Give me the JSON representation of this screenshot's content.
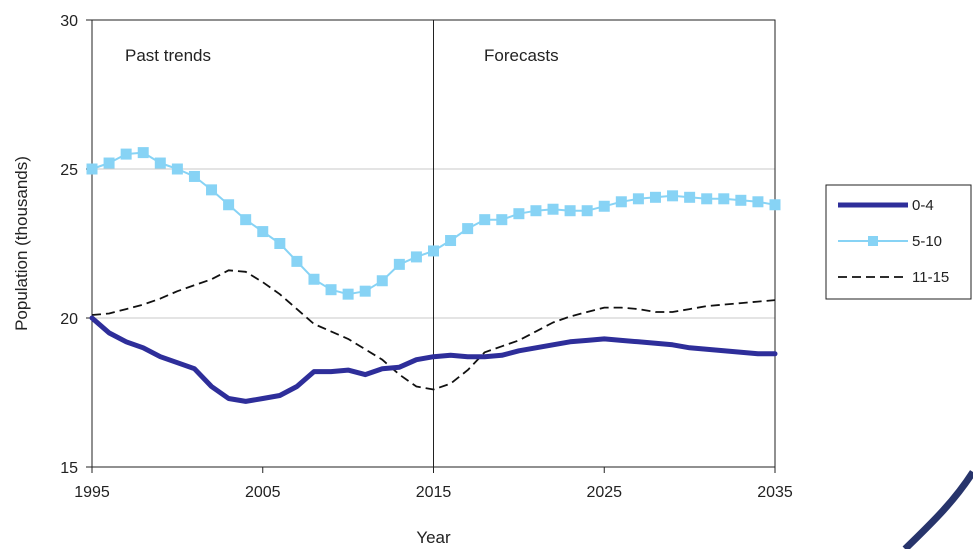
{
  "chart_data": {
    "type": "line",
    "xlabel": "Year",
    "ylabel": "Population (thousands)",
    "xlim": [
      1995,
      2035
    ],
    "ylim": [
      15,
      30
    ],
    "x_ticks": [
      1995,
      2005,
      2015,
      2025,
      2035
    ],
    "y_ticks": [
      15,
      20,
      25,
      30
    ],
    "grid": "horizontal",
    "legend_position": "right",
    "divider_x": 2015,
    "annotations": {
      "left": "Past trends",
      "right": "Forecasts"
    },
    "x": [
      1995,
      1996,
      1997,
      1998,
      1999,
      2000,
      2001,
      2002,
      2003,
      2004,
      2005,
      2006,
      2007,
      2008,
      2009,
      2010,
      2011,
      2012,
      2013,
      2014,
      2015,
      2016,
      2017,
      2018,
      2019,
      2020,
      2021,
      2022,
      2023,
      2024,
      2025,
      2026,
      2027,
      2028,
      2029,
      2030,
      2031,
      2032,
      2033,
      2034,
      2035
    ],
    "series": [
      {
        "name": "0-4",
        "color": "#2e2e9a",
        "style": "thick",
        "values": [
          20.0,
          19.5,
          19.2,
          19.0,
          18.7,
          18.5,
          18.3,
          17.7,
          17.3,
          17.2,
          17.3,
          17.4,
          17.7,
          18.2,
          18.2,
          18.25,
          18.1,
          18.3,
          18.35,
          18.6,
          18.7,
          18.75,
          18.7,
          18.7,
          18.75,
          18.9,
          19.0,
          19.1,
          19.2,
          19.25,
          19.3,
          19.25,
          19.2,
          19.15,
          19.1,
          19.0,
          18.95,
          18.9,
          18.85,
          18.8,
          18.8
        ]
      },
      {
        "name": "5-10",
        "color": "#87d3f5",
        "style": "marker",
        "values": [
          25.0,
          25.2,
          25.5,
          25.55,
          25.2,
          25.0,
          24.75,
          24.3,
          23.8,
          23.3,
          22.9,
          22.5,
          21.9,
          21.3,
          20.95,
          20.8,
          20.9,
          21.25,
          21.8,
          22.05,
          22.25,
          22.6,
          23.0,
          23.3,
          23.3,
          23.5,
          23.6,
          23.65,
          23.6,
          23.6,
          23.75,
          23.9,
          24.0,
          24.05,
          24.1,
          24.05,
          24.0,
          24.0,
          23.95,
          23.9,
          23.8
        ]
      },
      {
        "name": "11-15",
        "color": "#111111",
        "style": "dashed",
        "values": [
          20.1,
          20.15,
          20.3,
          20.45,
          20.65,
          20.9,
          21.1,
          21.3,
          21.6,
          21.55,
          21.2,
          20.8,
          20.3,
          19.8,
          19.55,
          19.3,
          18.95,
          18.6,
          18.1,
          17.7,
          17.6,
          17.8,
          18.25,
          18.85,
          19.05,
          19.25,
          19.55,
          19.85,
          20.05,
          20.2,
          20.35,
          20.35,
          20.3,
          20.2,
          20.2,
          20.3,
          20.4,
          20.45,
          20.5,
          20.55,
          20.6
        ]
      }
    ]
  }
}
